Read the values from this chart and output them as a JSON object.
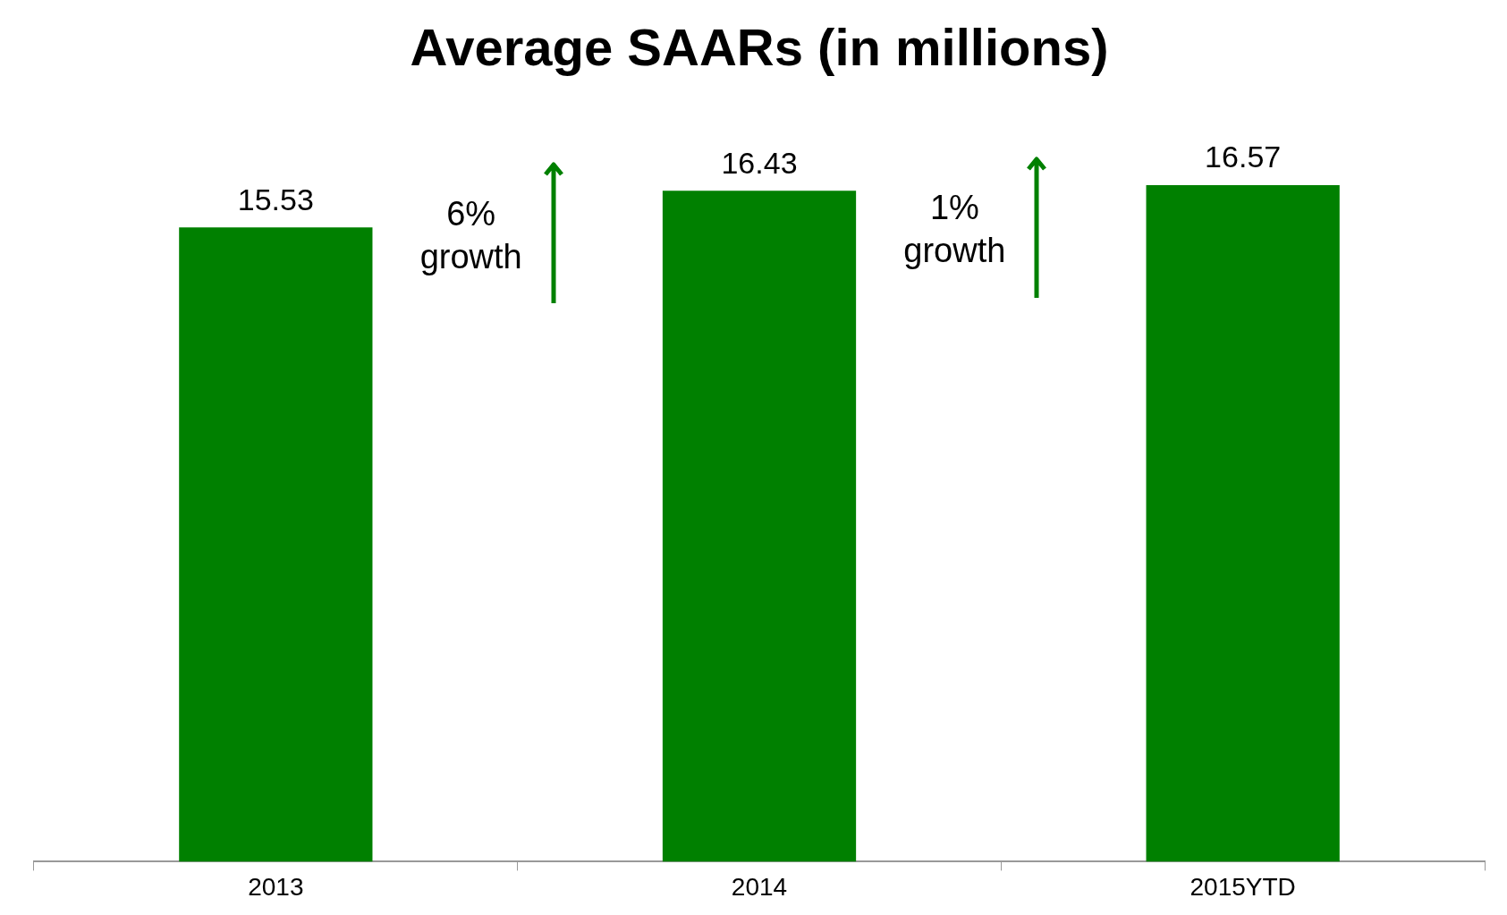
{
  "chart_data": {
    "type": "bar",
    "title": "Average SAARs (in millions)",
    "categories": [
      "2013",
      "2014",
      "2015YTD"
    ],
    "values": [
      15.53,
      16.43,
      16.57
    ],
    "color": "#008000",
    "data_labels": true,
    "annotations": [
      "6% growth",
      "1% growth"
    ]
  }
}
